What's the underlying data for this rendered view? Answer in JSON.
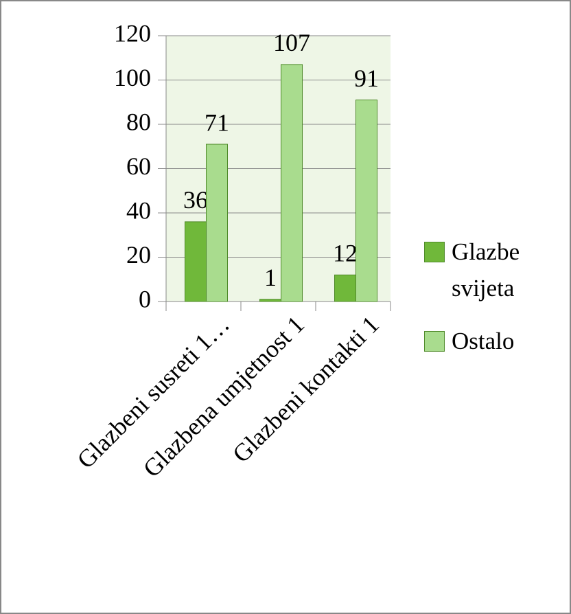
{
  "chart_data": {
    "type": "bar",
    "categories": [
      "Glazbeni susreti 1…",
      "Glazbena umjetnost 1",
      "Glazbeni kontakti 1"
    ],
    "series": [
      {
        "name": "Glazbe svijeta",
        "color": "#70b83a",
        "values": [
          36,
          1,
          12
        ]
      },
      {
        "name": "Ostalo",
        "color": "#a9dc8e",
        "values": [
          71,
          107,
          91
        ]
      }
    ],
    "ylim": [
      0,
      120
    ],
    "yticks": [
      0,
      20,
      40,
      60,
      80,
      100,
      120
    ],
    "grid": true,
    "legend": "right"
  }
}
